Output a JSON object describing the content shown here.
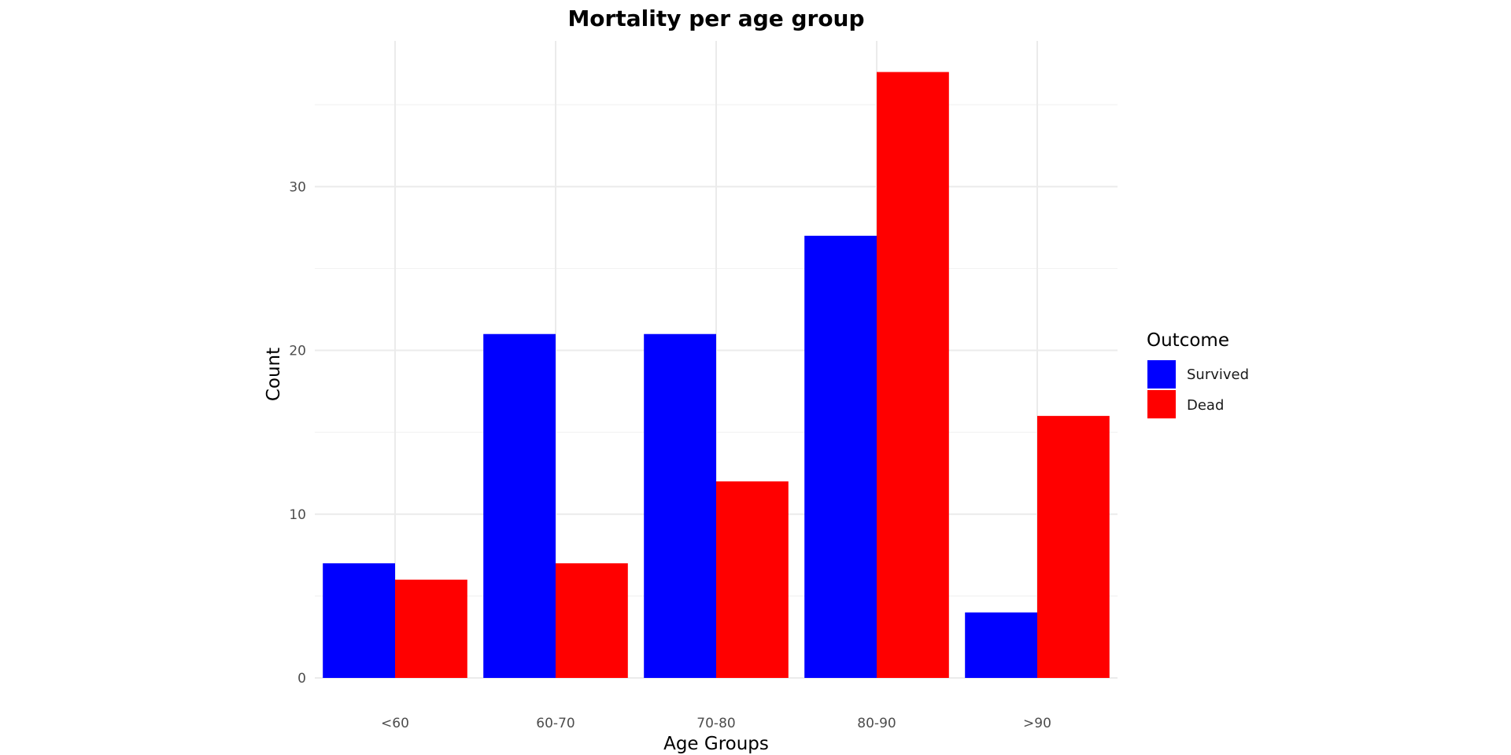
{
  "chart_data": {
    "type": "bar",
    "title": "Mortality per age group",
    "xlabel": "Age Groups",
    "ylabel": "Count",
    "categories": [
      "<60",
      "60-70",
      "70-80",
      "80-90",
      ">90"
    ],
    "series": [
      {
        "name": "Survived",
        "color": "#0000ff",
        "values": [
          7,
          21,
          21,
          27,
          4
        ]
      },
      {
        "name": "Dead",
        "color": "#ff0000",
        "values": [
          6,
          7,
          12,
          37,
          16
        ]
      }
    ],
    "ylim": [
      0,
      38.9
    ],
    "yticks": [
      0,
      10,
      20,
      30
    ],
    "y_minor_ticks": [
      5,
      15,
      25,
      35
    ],
    "grid": true,
    "legend": {
      "title": "Outcome",
      "position": "right"
    },
    "bar_layout": "dodge"
  }
}
